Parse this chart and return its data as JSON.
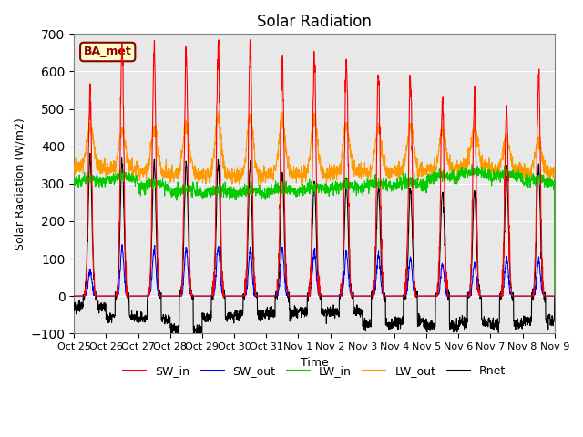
{
  "title": "Solar Radiation",
  "ylabel": "Solar Radiation (W/m2)",
  "xlabel": "Time",
  "station_label": "BA_met",
  "ylim": [
    -100,
    700
  ],
  "y_ticks": [
    -100,
    0,
    100,
    200,
    300,
    400,
    500,
    600,
    700
  ],
  "x_labels": [
    "Oct 25",
    "Oct 26",
    "Oct 27",
    "Oct 28",
    "Oct 29",
    "Oct 30",
    "Oct 31",
    "Nov 1",
    "Nov 2",
    "Nov 3",
    "Nov 4",
    "Nov 5",
    "Nov 6",
    "Nov 7",
    "Nov 8",
    "Nov 9"
  ],
  "colors": {
    "SW_in": "#ff0000",
    "SW_out": "#0000ff",
    "LW_in": "#00cc00",
    "LW_out": "#ff9900",
    "Rnet": "#000000"
  },
  "bg_color": "#e8e8e8",
  "fig_bg": "#ffffff",
  "n_days": 15,
  "points_per_day": 144,
  "SW_in_peaks": [
    540,
    665,
    660,
    660,
    675,
    680,
    640,
    635,
    625,
    600,
    585,
    520,
    525,
    500,
    595
  ],
  "SW_out_peaks": [
    68,
    130,
    125,
    128,
    130,
    125,
    125,
    120,
    115,
    110,
    100,
    88,
    85,
    100,
    95
  ],
  "LW_in_base": [
    300,
    305,
    285,
    272,
    268,
    268,
    272,
    278,
    282,
    288,
    292,
    308,
    318,
    312,
    298
  ],
  "LW_out_night": [
    345,
    340,
    330,
    325,
    320,
    320,
    325,
    325,
    330,
    330,
    335,
    340,
    345,
    335,
    330
  ],
  "LW_out_day_peak": [
    455,
    445,
    445,
    455,
    480,
    480,
    470,
    475,
    455,
    445,
    450,
    445,
    450,
    425,
    415
  ],
  "Rnet_peaks": [
    370,
    365,
    355,
    355,
    360,
    350,
    335,
    305,
    300,
    290,
    290,
    285,
    280,
    335,
    350
  ],
  "Rnet_night": [
    -30,
    -55,
    -60,
    -90,
    -55,
    -50,
    -45,
    -42,
    -42,
    -75,
    -70,
    -80,
    -70,
    -75,
    -65
  ]
}
